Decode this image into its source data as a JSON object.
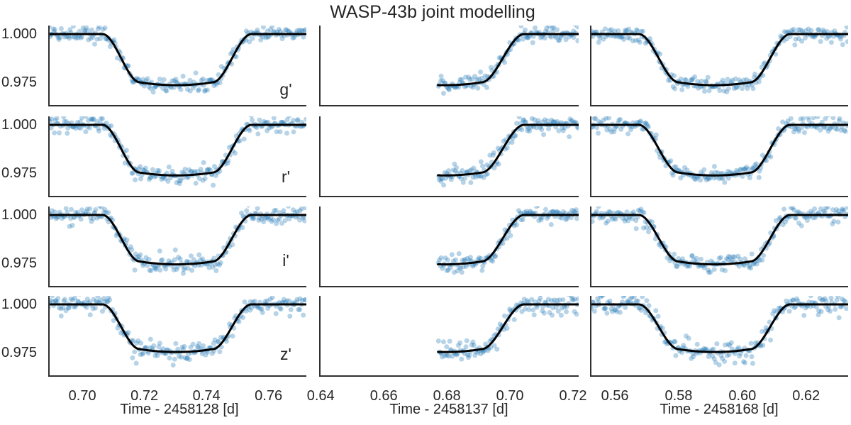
{
  "chart_data": {
    "type": "scatter",
    "title": "WASP-43b joint modelling",
    "description": "Grid of 12 transit light-curve panels (4 photometric bands x 3 nights). Light blue semi-transparent points are relative-flux photometry; black curve is the joint transit model.",
    "legend": "none",
    "grid": false,
    "point_color": "#1f77b4",
    "point_opacity": 0.32,
    "point_radius": 3.5,
    "model_color": "#000000",
    "model_width": 3,
    "spine_color": "#303030",
    "ylim": [
      0.9625,
      1.0044
    ],
    "yticks": [
      {
        "value": 1.0,
        "label": "1.000"
      },
      {
        "value": 0.975,
        "label": "0.975"
      }
    ],
    "rows": [
      {
        "band": "g'",
        "depth": 0.0265,
        "noise_sigma": 0.0019
      },
      {
        "band": "r'",
        "depth": 0.0262,
        "noise_sigma": 0.0021
      },
      {
        "band": "i'",
        "depth": 0.0256,
        "noise_sigma": 0.0022
      },
      {
        "band": "z'",
        "depth": 0.0247,
        "noise_sigma": 0.0026
      }
    ],
    "columns": [
      {
        "xlabel": "Time - 2458128 [d]",
        "xlim": [
          0.689,
          0.7722
        ],
        "xticks": [
          0.7,
          0.72,
          0.74,
          0.76
        ],
        "tick_labels": [
          "0.70",
          "0.72",
          "0.74",
          "0.76"
        ],
        "data_range": [
          0.689,
          0.7722
        ],
        "contacts": [
          0.7065,
          0.7185,
          0.742,
          0.7545
        ],
        "n_points": 240,
        "coverage": "full transit"
      },
      {
        "xlabel": "Time - 2458137 [d]",
        "xlim": [
          0.6395,
          0.7218
        ],
        "xticks": [
          0.64,
          0.66,
          0.68,
          0.7,
          0.72
        ],
        "tick_labels": [
          "0.64",
          "0.66",
          "0.68",
          "0.70",
          "0.72"
        ],
        "data_range": [
          0.6772,
          0.7218
        ],
        "contacts": [
          0.6555,
          0.668,
          0.691,
          0.7045
        ],
        "n_points": 140,
        "coverage": "egress only"
      },
      {
        "xlabel": "Time - 2458168 [d]",
        "xlim": [
          0.5522,
          0.6332
        ],
        "xticks": [
          0.56,
          0.58,
          0.6,
          0.62
        ],
        "tick_labels": [
          "0.56",
          "0.58",
          "0.60",
          "0.62"
        ],
        "data_range": [
          0.5522,
          0.6332
        ],
        "contacts": [
          0.5675,
          0.58,
          0.6025,
          0.615
        ],
        "n_points": 235,
        "coverage": "full transit"
      }
    ],
    "baseline_flux": 1.0,
    "bottom_curvature": 0.0015
  }
}
